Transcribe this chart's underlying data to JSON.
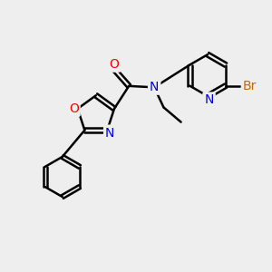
{
  "bg_color": "#eeeeee",
  "bond_color": "#000000",
  "bond_width": 1.8,
  "atom_colors": {
    "O": "#ff0000",
    "N": "#0000dd",
    "Br": "#cc6600",
    "C": "#000000"
  },
  "font_size_atoms": 10,
  "font_size_br": 10
}
